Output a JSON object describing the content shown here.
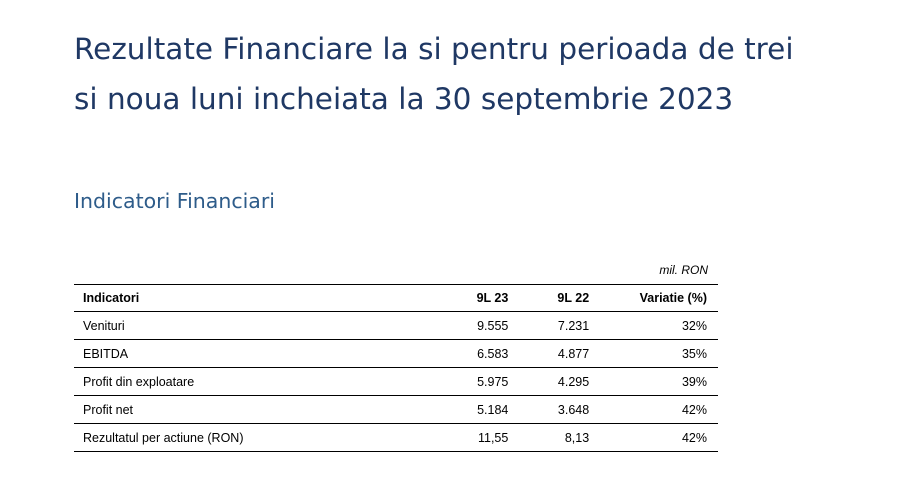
{
  "title": {
    "line1": "Rezultate Financiare la si pentru perioada de trei",
    "line2": "si noua luni incheiata la 30 septembrie 2023"
  },
  "subtitle": "Indicatori Financiari",
  "unit": "mil. RON",
  "table": {
    "headers": [
      "Indicatori",
      "9L 23",
      "9L 22",
      "Variatie (%)"
    ],
    "rows": [
      [
        "Venituri",
        "9.555",
        "7.231",
        "32%"
      ],
      [
        "EBITDA",
        "6.583",
        "4.877",
        "35%"
      ],
      [
        "Profit din exploatare",
        "5.975",
        "4.295",
        "39%"
      ],
      [
        "Profit net",
        "5.184",
        "3.648",
        "42%"
      ],
      [
        "Rezultatul per actiune (RON)",
        "11,55",
        "8,13",
        "42%"
      ]
    ]
  }
}
